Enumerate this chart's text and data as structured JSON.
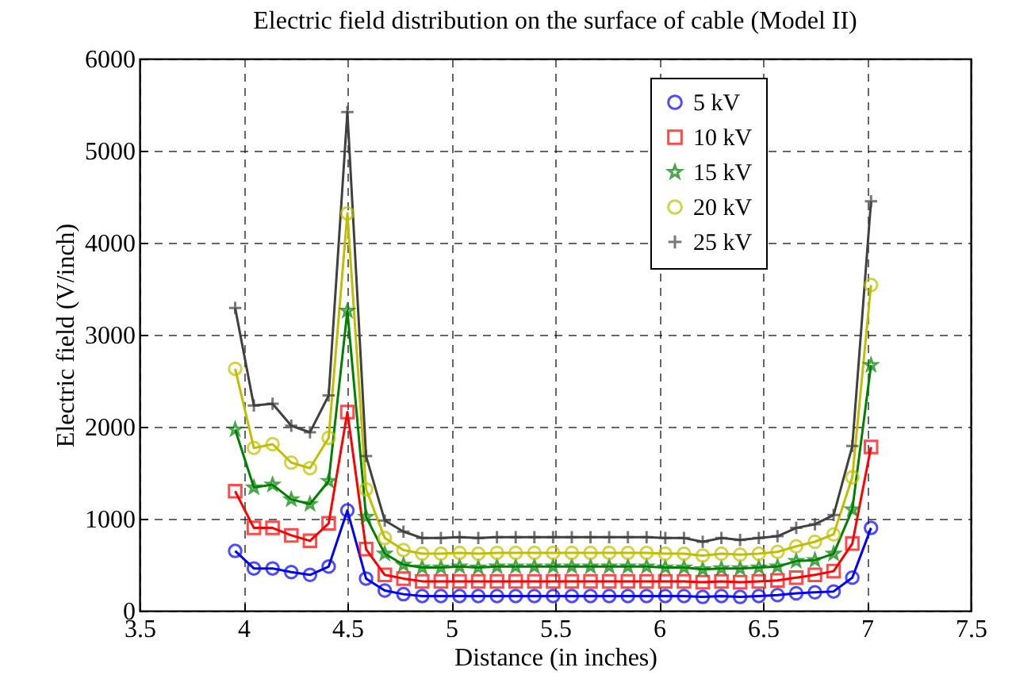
{
  "chart_data": {
    "type": "line",
    "title": "Electric field distribution on the surface of cable (Model II)",
    "xlabel": "Distance (in inches)",
    "ylabel": "Electric field (V/inch)",
    "x": [
      3.96,
      4.05,
      4.14,
      4.23,
      4.32,
      4.41,
      4.5,
      4.59,
      4.68,
      4.77,
      4.86,
      4.95,
      5.04,
      5.13,
      5.22,
      5.31,
      5.4,
      5.49,
      5.58,
      5.67,
      5.76,
      5.85,
      5.94,
      6.03,
      6.12,
      6.21,
      6.3,
      6.39,
      6.48,
      6.57,
      6.66,
      6.75,
      6.84,
      6.93,
      7.02
    ],
    "series": [
      {
        "name": "5 kV",
        "color": "#0000ff",
        "marker": "circle",
        "values": [
          650,
          460,
          460,
          420,
          390,
          480,
          1090,
          350,
          220,
          180,
          160,
          160,
          160,
          160,
          160,
          160,
          160,
          160,
          160,
          160,
          160,
          160,
          160,
          160,
          160,
          150,
          160,
          150,
          160,
          170,
          190,
          200,
          210,
          360,
          900
        ]
      },
      {
        "name": "10 kV",
        "color": "#ff0000",
        "marker": "square",
        "values": [
          1300,
          900,
          900,
          820,
          760,
          950,
          2160,
          670,
          390,
          350,
          320,
          320,
          320,
          320,
          320,
          320,
          320,
          320,
          320,
          320,
          320,
          320,
          320,
          320,
          320,
          310,
          320,
          310,
          320,
          330,
          360,
          390,
          430,
          730,
          1780
        ]
      },
      {
        "name": "15 kV",
        "color": "#008000",
        "marker": "star",
        "values": [
          1970,
          1340,
          1370,
          1210,
          1160,
          1410,
          3260,
          1020,
          620,
          500,
          470,
          470,
          480,
          470,
          480,
          480,
          480,
          480,
          480,
          480,
          480,
          480,
          480,
          470,
          470,
          450,
          460,
          460,
          470,
          480,
          540,
          550,
          620,
          1100,
          2670
        ]
      },
      {
        "name": "20 kV",
        "color": "#bfbf00",
        "marker": "circle",
        "values": [
          2630,
          1770,
          1810,
          1610,
          1550,
          1880,
          4320,
          1320,
          790,
          660,
          620,
          620,
          630,
          620,
          630,
          630,
          630,
          630,
          630,
          630,
          630,
          630,
          630,
          620,
          620,
          600,
          620,
          610,
          620,
          640,
          700,
          750,
          830,
          1450,
          3540
        ]
      },
      {
        "name": "25 kV",
        "color": "#404040",
        "marker": "cross",
        "values": [
          3290,
          2230,
          2250,
          2010,
          1940,
          2340,
          5420,
          1680,
          980,
          860,
          790,
          790,
          800,
          790,
          800,
          800,
          800,
          800,
          800,
          800,
          800,
          800,
          800,
          790,
          790,
          750,
          790,
          770,
          790,
          810,
          900,
          940,
          1040,
          1790,
          4450
        ]
      }
    ],
    "xlim": [
      3.5,
      7.5
    ],
    "xticks": [
      3.5,
      4,
      4.5,
      5,
      5.5,
      6,
      6.5,
      7,
      7.5
    ],
    "ylim": [
      0,
      6000
    ],
    "yticks": [
      0,
      1000,
      2000,
      3000,
      4000,
      5000,
      6000
    ],
    "grid": true,
    "legend": "top right",
    "line_style": "solid"
  }
}
